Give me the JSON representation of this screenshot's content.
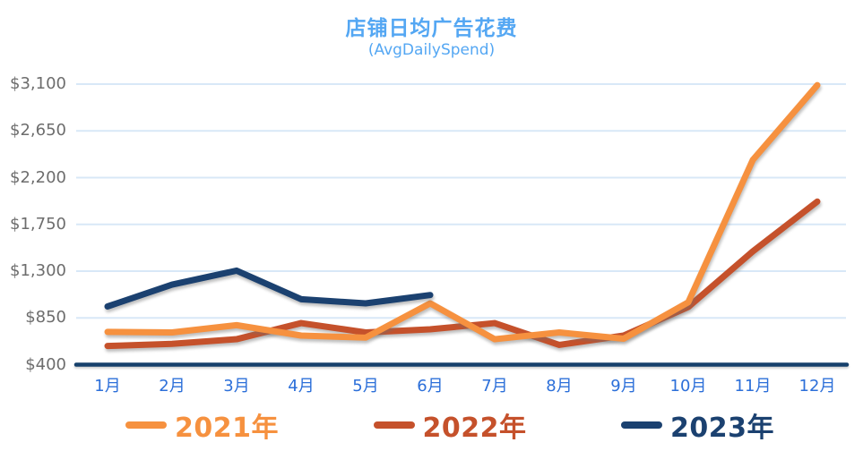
{
  "header": {
    "title": "店铺日均广告花费",
    "subtitle": "(AvgDailySpend)"
  },
  "chart_data": {
    "type": "line",
    "categories": [
      "1月",
      "2月",
      "3月",
      "4月",
      "5月",
      "6月",
      "7月",
      "8月",
      "9月",
      "10月",
      "11月",
      "12月"
    ],
    "series": [
      {
        "name": "2021年",
        "color": "#F6913F",
        "values": [
          715,
          710,
          780,
          680,
          660,
          990,
          645,
          710,
          650,
          1000,
          2370,
          3090
        ]
      },
      {
        "name": "2022年",
        "color": "#C5512B",
        "values": [
          580,
          600,
          645,
          800,
          710,
          740,
          800,
          590,
          680,
          955,
          1490,
          1970
        ]
      },
      {
        "name": "2023年",
        "color": "#1B4170",
        "values": [
          960,
          1170,
          1305,
          1030,
          990,
          1070,
          null,
          null,
          null,
          null,
          null,
          null
        ]
      }
    ],
    "y_ticks": [
      {
        "label": "$400",
        "value": 400
      },
      {
        "label": "$850",
        "value": 850
      },
      {
        "label": "$1,300",
        "value": 1300
      },
      {
        "label": "$1,750",
        "value": 1750
      },
      {
        "label": "$2,200",
        "value": 2200
      },
      {
        "label": "$2,650",
        "value": 2650
      },
      {
        "label": "$3,100",
        "value": 3100
      }
    ],
    "ylim": [
      400,
      3100
    ],
    "grid": true,
    "legend_position": "bottom"
  },
  "colors": {
    "title": "#54A7F3",
    "x_label": "#2C6FD9",
    "y_label": "#6D6D6D",
    "gridline": "#D8E8F7",
    "axis": "#16406B"
  }
}
